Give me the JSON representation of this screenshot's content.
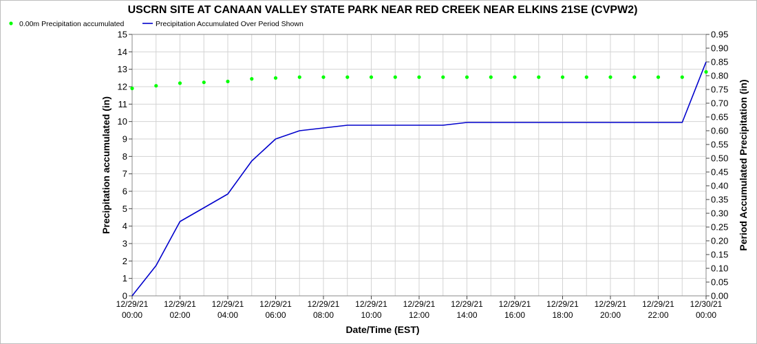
{
  "chart_data": {
    "type": "line",
    "title": "USCRN SITE AT CANAAN VALLEY STATE PARK NEAR RED CREEK NEAR ELKINS 21SE (CVPW2)",
    "xlabel": "Date/Time (EST)",
    "ylabel_left": "Precipitation accumulated (in)",
    "ylabel_right": "Period Accumulated Precipitation (in)",
    "ylim_left": [
      0,
      15
    ],
    "ylim_right": [
      0,
      0.95
    ],
    "yticks_left": [
      "0",
      "1",
      "2",
      "3",
      "4",
      "5",
      "6",
      "7",
      "8",
      "9",
      "10",
      "11",
      "12",
      "13",
      "14",
      "15"
    ],
    "yticks_right": [
      "0.00",
      "0.05",
      "0.10",
      "0.15",
      "0.20",
      "0.25",
      "0.30",
      "0.35",
      "0.40",
      "0.45",
      "0.50",
      "0.55",
      "0.60",
      "0.65",
      "0.70",
      "0.75",
      "0.80",
      "0.85",
      "0.90",
      "0.95"
    ],
    "xlim_hours": [
      0,
      24
    ],
    "xticks": [
      {
        "hour": 0,
        "line1": "12/29/21",
        "line2": "00:00"
      },
      {
        "hour": 2,
        "line1": "12/29/21",
        "line2": "02:00"
      },
      {
        "hour": 4,
        "line1": "12/29/21",
        "line2": "04:00"
      },
      {
        "hour": 6,
        "line1": "12/29/21",
        "line2": "06:00"
      },
      {
        "hour": 8,
        "line1": "12/29/21",
        "line2": "08:00"
      },
      {
        "hour": 10,
        "line1": "12/29/21",
        "line2": "10:00"
      },
      {
        "hour": 12,
        "line1": "12/29/21",
        "line2": "12:00"
      },
      {
        "hour": 14,
        "line1": "12/29/21",
        "line2": "14:00"
      },
      {
        "hour": 16,
        "line1": "12/29/21",
        "line2": "16:00"
      },
      {
        "hour": 18,
        "line1": "12/29/21",
        "line2": "18:00"
      },
      {
        "hour": 20,
        "line1": "12/29/21",
        "line2": "20:00"
      },
      {
        "hour": 22,
        "line1": "12/29/21",
        "line2": "22:00"
      },
      {
        "hour": 24,
        "line1": "12/30/21",
        "line2": "00:00"
      }
    ],
    "grid": true,
    "legend_position": "top-left",
    "series": [
      {
        "name": "0.00m Precipitation accumulated",
        "kind": "scatter",
        "axis": "left",
        "color": "#00ff00",
        "points": [
          [
            0,
            11.9
          ],
          [
            1,
            12.05
          ],
          [
            2,
            12.2
          ],
          [
            3,
            12.25
          ],
          [
            4,
            12.3
          ],
          [
            5,
            12.45
          ],
          [
            6,
            12.5
          ],
          [
            7,
            12.55
          ],
          [
            8,
            12.55
          ],
          [
            9,
            12.55
          ],
          [
            10,
            12.55
          ],
          [
            11,
            12.55
          ],
          [
            12,
            12.55
          ],
          [
            13,
            12.55
          ],
          [
            14,
            12.55
          ],
          [
            15,
            12.55
          ],
          [
            16,
            12.55
          ],
          [
            17,
            12.55
          ],
          [
            18,
            12.55
          ],
          [
            19,
            12.55
          ],
          [
            20,
            12.55
          ],
          [
            21,
            12.55
          ],
          [
            22,
            12.55
          ],
          [
            23,
            12.55
          ],
          [
            24,
            12.85
          ]
        ]
      },
      {
        "name": "Precipitation Accumulated Over Period Shown",
        "kind": "line",
        "axis": "right",
        "color": "#0000cc",
        "points": [
          [
            0,
            0.0
          ],
          [
            1,
            0.11
          ],
          [
            2,
            0.27
          ],
          [
            3,
            0.32
          ],
          [
            4,
            0.37
          ],
          [
            5,
            0.49
          ],
          [
            6,
            0.57
          ],
          [
            7,
            0.6
          ],
          [
            8,
            0.61
          ],
          [
            9,
            0.62
          ],
          [
            10,
            0.62
          ],
          [
            11,
            0.62
          ],
          [
            12,
            0.62
          ],
          [
            13,
            0.62
          ],
          [
            14,
            0.63
          ],
          [
            15,
            0.63
          ],
          [
            16,
            0.63
          ],
          [
            17,
            0.63
          ],
          [
            18,
            0.63
          ],
          [
            19,
            0.63
          ],
          [
            20,
            0.63
          ],
          [
            21,
            0.63
          ],
          [
            22,
            0.63
          ],
          [
            23,
            0.63
          ],
          [
            24,
            0.85
          ]
        ]
      }
    ]
  }
}
